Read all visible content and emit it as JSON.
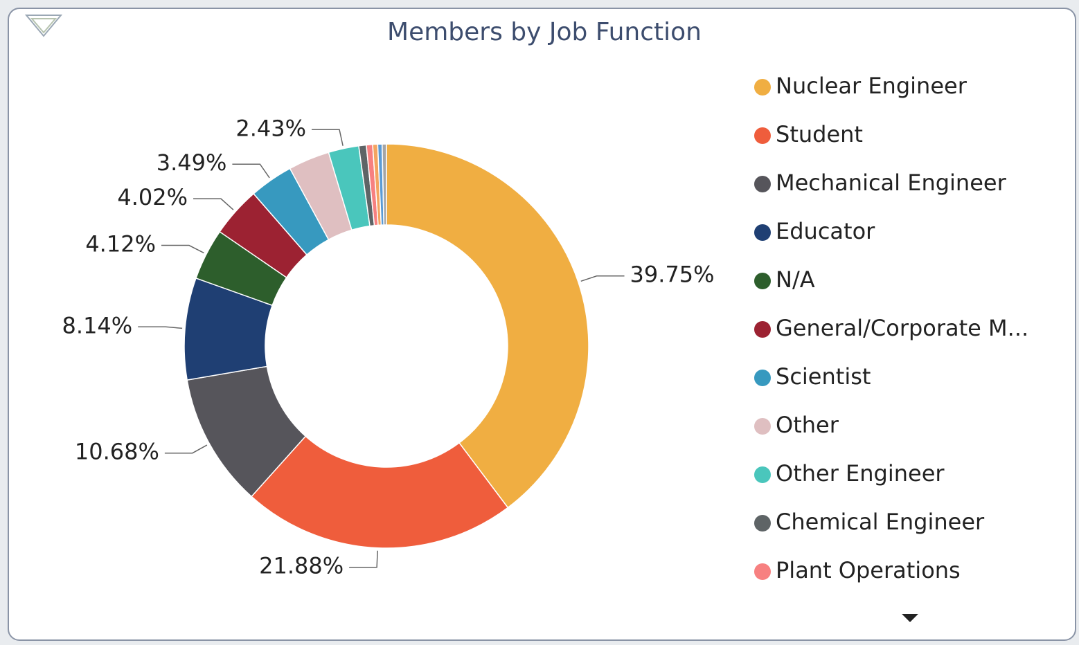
{
  "chart_data": {
    "type": "pie",
    "title": "Members by Job Function",
    "donut": true,
    "categories": [
      "Nuclear Engineer",
      "Student",
      "Mechanical Engineer",
      "Educator",
      "N/A",
      "General/Corporate M...",
      "Scientist",
      "Other",
      "Other Engineer",
      "Chemical Engineer",
      "Plant Operations",
      null,
      null,
      null
    ],
    "values": [
      39.75,
      21.88,
      10.68,
      8.14,
      4.12,
      4.02,
      3.49,
      3.3,
      2.43,
      0.6,
      0.5,
      0.4,
      0.35,
      0.34
    ],
    "value_labels": [
      "39.75%",
      "21.88%",
      "10.68%",
      "8.14%",
      "4.12%",
      "4.02%",
      "3.49%",
      null,
      "2.43%",
      null,
      null,
      null,
      null,
      null
    ],
    "colors": [
      "#f0ae42",
      "#ef5d3c",
      "#56555b",
      "#1f3f73",
      "#2d5e2c",
      "#9c2232",
      "#3799bf",
      "#dfbfc1",
      "#4ac6bc",
      "#5e6466",
      "#f78080",
      "#f4a460",
      "#5b9bd5",
      "#a5a5a5"
    ]
  }
}
